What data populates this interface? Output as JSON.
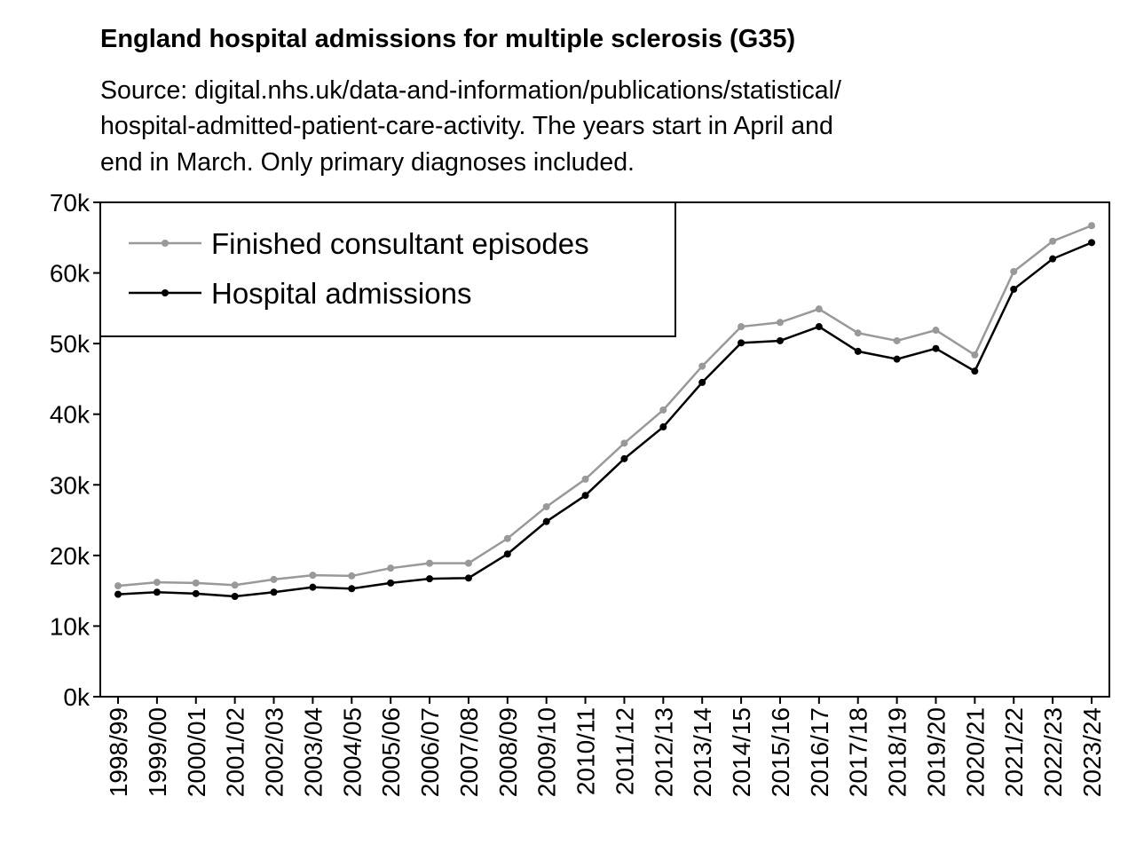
{
  "chart_data": {
    "type": "line",
    "title": "England hospital admissions for multiple sclerosis (G35)",
    "subtitle_lines": [
      "Source: digital.nhs.uk/data-and-information/publications/statistical/",
      "hospital-admitted-patient-care-activity. The years start in April and",
      "end in March. Only primary diagnoses included."
    ],
    "xlabel": "",
    "ylabel": "",
    "ylim": [
      0,
      70000
    ],
    "yticks": [
      0,
      10000,
      20000,
      30000,
      40000,
      50000,
      60000,
      70000
    ],
    "ytick_labels": [
      "0k",
      "10k",
      "20k",
      "30k",
      "40k",
      "50k",
      "60k",
      "70k"
    ],
    "categories": [
      "1998/99",
      "1999/00",
      "2000/01",
      "2001/02",
      "2002/03",
      "2003/04",
      "2004/05",
      "2005/06",
      "2006/07",
      "2007/08",
      "2008/09",
      "2009/10",
      "2010/11",
      "2011/12",
      "2012/13",
      "2013/14",
      "2014/15",
      "2015/16",
      "2016/17",
      "2017/18",
      "2018/19",
      "2019/20",
      "2020/21",
      "2021/22",
      "2022/23",
      "2023/24"
    ],
    "series": [
      {
        "name": "Finished consultant episodes",
        "color": "#999999",
        "values": [
          15700,
          16200,
          16100,
          15800,
          16600,
          17200,
          17100,
          18200,
          18900,
          18900,
          22400,
          26900,
          30800,
          35900,
          40600,
          46800,
          52400,
          53000,
          54900,
          51500,
          50400,
          51900,
          48400,
          60200,
          64500,
          66700
        ]
      },
      {
        "name": "Hospital admissions",
        "color": "#000000",
        "values": [
          14500,
          14800,
          14600,
          14200,
          14800,
          15500,
          15300,
          16100,
          16700,
          16800,
          20200,
          24800,
          28500,
          33700,
          38200,
          44500,
          50100,
          50400,
          52400,
          48900,
          47800,
          49300,
          46100,
          57700,
          62000,
          64300
        ]
      }
    ],
    "legend_position": "top-left",
    "grid": false
  }
}
